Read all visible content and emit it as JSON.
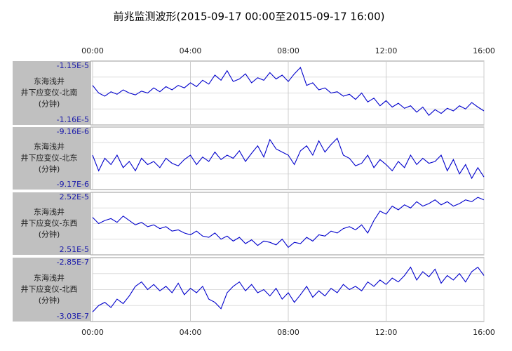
{
  "title": "前兆监测波形(2015-09-17 00:00至2015-09-17 16:00)",
  "chart_data": [
    {
      "type": "line",
      "label": [
        "东海浅井",
        "井下应变仪-北南",
        "(分钟)"
      ],
      "color": "#0000cc",
      "xlim": [
        0,
        16
      ],
      "xticks": [
        {
          "value": 0,
          "label": "00:00"
        },
        {
          "value": 4,
          "label": "04:00"
        },
        {
          "value": 8,
          "label": "08:00"
        },
        {
          "value": 12,
          "label": "12:00"
        },
        {
          "value": 16,
          "label": "16:00"
        }
      ],
      "ylim": [
        -1.16e-05,
        -1.15e-05
      ],
      "yticks": [
        {
          "value": -1.15e-05,
          "label": "-1.15E-5"
        },
        {
          "value": -1.16e-05,
          "label": "-1.16E-5"
        }
      ],
      "x": [
        0,
        0.25,
        0.5,
        0.75,
        1,
        1.25,
        1.5,
        1.75,
        2,
        2.25,
        2.5,
        2.75,
        3,
        3.25,
        3.5,
        3.75,
        4,
        4.25,
        4.5,
        4.75,
        5,
        5.25,
        5.5,
        5.75,
        6,
        6.25,
        6.5,
        6.75,
        7,
        7.25,
        7.5,
        7.75,
        8,
        8.25,
        8.5,
        8.75,
        9,
        9.25,
        9.5,
        9.75,
        10,
        10.25,
        10.5,
        10.75,
        11,
        11.25,
        11.5,
        11.75,
        12,
        12.25,
        12.5,
        12.75,
        13,
        13.25,
        13.5,
        13.75,
        14,
        14.25,
        14.5,
        14.75,
        15,
        15.25,
        15.5,
        15.75,
        16
      ],
      "values": [
        -1.1538e-05,
        -1.155e-05,
        -1.1555e-05,
        -1.1548e-05,
        -1.1552e-05,
        -1.1545e-05,
        -1.155e-05,
        -1.1553e-05,
        -1.1547e-05,
        -1.155e-05,
        -1.1542e-05,
        -1.1548e-05,
        -1.154e-05,
        -1.1545e-05,
        -1.1538e-05,
        -1.1542e-05,
        -1.1534e-05,
        -1.154e-05,
        -1.153e-05,
        -1.1536e-05,
        -1.1522e-05,
        -1.153e-05,
        -1.1515e-05,
        -1.1532e-05,
        -1.1528e-05,
        -1.152e-05,
        -1.1534e-05,
        -1.1526e-05,
        -1.153e-05,
        -1.1518e-05,
        -1.1528e-05,
        -1.1522e-05,
        -1.1532e-05,
        -1.152e-05,
        -1.151e-05,
        -1.1538e-05,
        -1.1534e-05,
        -1.1545e-05,
        -1.1542e-05,
        -1.155e-05,
        -1.1548e-05,
        -1.1555e-05,
        -1.1552e-05,
        -1.156e-05,
        -1.155e-05,
        -1.1564e-05,
        -1.1558e-05,
        -1.157e-05,
        -1.1562e-05,
        -1.1572e-05,
        -1.1566e-05,
        -1.1574e-05,
        -1.157e-05,
        -1.158e-05,
        -1.1572e-05,
        -1.1585e-05,
        -1.1576e-05,
        -1.1582e-05,
        -1.1574e-05,
        -1.1578e-05,
        -1.157e-05,
        -1.1575e-05,
        -1.1565e-05,
        -1.1572e-05,
        -1.1578e-05
      ]
    },
    {
      "type": "line",
      "label": [
        "东海浅井",
        "井下应变仪-北东",
        "(分钟)"
      ],
      "color": "#0000cc",
      "xlim": [
        0,
        16
      ],
      "xticks": [
        {
          "value": 0,
          "label": "00:00"
        },
        {
          "value": 4,
          "label": "04:00"
        },
        {
          "value": 8,
          "label": "08:00"
        },
        {
          "value": 12,
          "label": "12:00"
        },
        {
          "value": 16,
          "label": "16:00"
        }
      ],
      "ylim": [
        -9.17e-06,
        -9.16e-06
      ],
      "yticks": [
        {
          "value": -9.16e-06,
          "label": "-9.16E-6"
        },
        {
          "value": -9.17e-06,
          "label": "-9.17E-6"
        }
      ],
      "x": [
        0,
        0.25,
        0.5,
        0.75,
        1,
        1.25,
        1.5,
        1.75,
        2,
        2.25,
        2.5,
        2.75,
        3,
        3.25,
        3.5,
        3.75,
        4,
        4.25,
        4.5,
        4.75,
        5,
        5.25,
        5.5,
        5.75,
        6,
        6.25,
        6.5,
        6.75,
        7,
        7.25,
        7.5,
        7.75,
        8,
        8.25,
        8.5,
        8.75,
        9,
        9.25,
        9.5,
        9.75,
        10,
        10.25,
        10.5,
        10.75,
        11,
        11.25,
        11.5,
        11.75,
        12,
        12.25,
        12.5,
        12.75,
        13,
        13.25,
        13.5,
        13.75,
        14,
        14.25,
        14.5,
        14.75,
        15,
        15.25,
        15.5,
        15.75,
        16
      ],
      "values": [
        -9.1645e-06,
        -9.167e-06,
        -9.165e-06,
        -9.166e-06,
        -9.1645e-06,
        -9.1665e-06,
        -9.1655e-06,
        -9.167e-06,
        -9.165e-06,
        -9.166e-06,
        -9.1655e-06,
        -9.1665e-06,
        -9.165e-06,
        -9.1658e-06,
        -9.1662e-06,
        -9.1652e-06,
        -9.1645e-06,
        -9.166e-06,
        -9.1648e-06,
        -9.1655e-06,
        -9.164e-06,
        -9.1652e-06,
        -9.1645e-06,
        -9.165e-06,
        -9.1638e-06,
        -9.1655e-06,
        -9.1642e-06,
        -9.163e-06,
        -9.1648e-06,
        -9.162e-06,
        -9.1635e-06,
        -9.164e-06,
        -9.1645e-06,
        -9.166e-06,
        -9.1638e-06,
        -9.163e-06,
        -9.1645e-06,
        -9.1622e-06,
        -9.164e-06,
        -9.1628e-06,
        -9.1618e-06,
        -9.1645e-06,
        -9.165e-06,
        -9.1662e-06,
        -9.1658e-06,
        -9.1645e-06,
        -9.1665e-06,
        -9.1652e-06,
        -9.166e-06,
        -9.167e-06,
        -9.1655e-06,
        -9.1665e-06,
        -9.1645e-06,
        -9.166e-06,
        -9.165e-06,
        -9.1658e-06,
        -9.1655e-06,
        -9.1645e-06,
        -9.167e-06,
        -9.1652e-06,
        -9.1675e-06,
        -9.166e-06,
        -9.1682e-06,
        -9.1665e-06,
        -9.168e-06
      ]
    },
    {
      "type": "line",
      "label": [
        "东海浅井",
        "井下应变仪-东西",
        "(分钟)"
      ],
      "color": "#0000cc",
      "xlim": [
        0,
        16
      ],
      "xticks": [
        {
          "value": 0,
          "label": "00:00"
        },
        {
          "value": 4,
          "label": "04:00"
        },
        {
          "value": 8,
          "label": "08:00"
        },
        {
          "value": 12,
          "label": "12:00"
        },
        {
          "value": 16,
          "label": "16:00"
        }
      ],
      "ylim": [
        2.51e-05,
        2.52e-05
      ],
      "yticks": [
        {
          "value": 2.52e-05,
          "label": "2.52E-5"
        },
        {
          "value": 2.51e-05,
          "label": "2.51E-5"
        }
      ],
      "x": [
        0,
        0.25,
        0.5,
        0.75,
        1,
        1.25,
        1.5,
        1.75,
        2,
        2.25,
        2.5,
        2.75,
        3,
        3.25,
        3.5,
        3.75,
        4,
        4.25,
        4.5,
        4.75,
        5,
        5.25,
        5.5,
        5.75,
        6,
        6.25,
        6.5,
        6.75,
        7,
        7.25,
        7.5,
        7.75,
        8,
        8.25,
        8.5,
        8.75,
        9,
        9.25,
        9.5,
        9.75,
        10,
        10.25,
        10.5,
        10.75,
        11,
        11.25,
        11.5,
        11.75,
        12,
        12.25,
        12.5,
        12.75,
        13,
        13.25,
        13.5,
        13.75,
        14,
        14.25,
        14.5,
        14.75,
        15,
        15.25,
        15.5,
        15.75,
        16
      ],
      "values": [
        2.516e-05,
        2.515e-05,
        2.5155e-05,
        2.5158e-05,
        2.5152e-05,
        2.5162e-05,
        2.5155e-05,
        2.5148e-05,
        2.5152e-05,
        2.5145e-05,
        2.5148e-05,
        2.5142e-05,
        2.5145e-05,
        2.5138e-05,
        2.514e-05,
        2.5135e-05,
        2.5132e-05,
        2.5138e-05,
        2.513e-05,
        2.5128e-05,
        2.5135e-05,
        2.5125e-05,
        2.513e-05,
        2.5122e-05,
        2.5128e-05,
        2.5118e-05,
        2.5124e-05,
        2.5115e-05,
        2.5122e-05,
        2.512e-05,
        2.5116e-05,
        2.5125e-05,
        2.5112e-05,
        2.512e-05,
        2.5118e-05,
        2.5128e-05,
        2.5122e-05,
        2.5132e-05,
        2.513e-05,
        2.5138e-05,
        2.5135e-05,
        2.5142e-05,
        2.5145e-05,
        2.514e-05,
        2.5148e-05,
        2.5135e-05,
        2.5155e-05,
        2.517e-05,
        2.5165e-05,
        2.5178e-05,
        2.5172e-05,
        2.518e-05,
        2.5175e-05,
        2.5185e-05,
        2.5178e-05,
        2.5182e-05,
        2.5188e-05,
        2.518e-05,
        2.5185e-05,
        2.5178e-05,
        2.5182e-05,
        2.5188e-05,
        2.5185e-05,
        2.5192e-05,
        2.5188e-05
      ]
    },
    {
      "type": "line",
      "label": [
        "东海浅井",
        "井下应变仪-北西",
        "(分钟)"
      ],
      "color": "#0000cc",
      "xlim": [
        0,
        16
      ],
      "xticks": [
        {
          "value": 0,
          "label": "00:00"
        },
        {
          "value": 4,
          "label": "04:00"
        },
        {
          "value": 8,
          "label": "08:00"
        },
        {
          "value": 12,
          "label": "12:00"
        },
        {
          "value": 16,
          "label": "16:00"
        }
      ],
      "ylim": [
        -3.03e-07,
        -2.85e-07
      ],
      "yticks": [
        {
          "value": -2.85e-07,
          "label": "-2.85E-7"
        },
        {
          "value": -3.03e-07,
          "label": "-3.03E-7"
        }
      ],
      "x": [
        0,
        0.25,
        0.5,
        0.75,
        1,
        1.25,
        1.5,
        1.75,
        2,
        2.25,
        2.5,
        2.75,
        3,
        3.25,
        3.5,
        3.75,
        4,
        4.25,
        4.5,
        4.75,
        5,
        5.25,
        5.5,
        5.75,
        6,
        6.25,
        6.5,
        6.75,
        7,
        7.25,
        7.5,
        7.75,
        8,
        8.25,
        8.5,
        8.75,
        9,
        9.25,
        9.5,
        9.75,
        10,
        10.25,
        10.5,
        10.75,
        11,
        11.25,
        11.5,
        11.75,
        12,
        12.25,
        12.5,
        12.75,
        13,
        13.25,
        13.5,
        13.75,
        14,
        14.25,
        14.5,
        14.75,
        15,
        15.25,
        15.5,
        15.75,
        16
      ],
      "values": [
        -3.003e-07,
        -2.985e-07,
        -2.976e-07,
        -2.9904e-07,
        -2.967e-07,
        -2.9796e-07,
        -2.958e-07,
        -2.931e-07,
        -2.9184e-07,
        -2.94e-07,
        -2.9256e-07,
        -2.9436e-07,
        -2.931e-07,
        -2.949e-07,
        -2.922e-07,
        -2.9544e-07,
        -2.9364e-07,
        -2.949e-07,
        -2.931e-07,
        -2.967e-07,
        -2.976e-07,
        -2.994e-07,
        -2.949e-07,
        -2.931e-07,
        -2.9184e-07,
        -2.9436e-07,
        -2.9256e-07,
        -2.949e-07,
        -2.94e-07,
        -2.958e-07,
        -2.9364e-07,
        -2.967e-07,
        -2.949e-07,
        -2.976e-07,
        -2.9544e-07,
        -2.931e-07,
        -2.9616e-07,
        -2.9436e-07,
        -2.958e-07,
        -2.9364e-07,
        -2.949e-07,
        -2.9256e-07,
        -2.94e-07,
        -2.931e-07,
        -2.9436e-07,
        -2.9184e-07,
        -2.931e-07,
        -2.913e-07,
        -2.9256e-07,
        -2.9076e-07,
        -2.9184e-07,
        -2.9004e-07,
        -2.877e-07,
        -2.913e-07,
        -2.8896e-07,
        -2.904e-07,
        -2.8824e-07,
        -2.922e-07,
        -2.9004e-07,
        -2.913e-07,
        -2.895e-07,
        -2.9184e-07,
        -2.8896e-07,
        -2.877e-07,
        -2.9004e-07
      ]
    }
  ]
}
